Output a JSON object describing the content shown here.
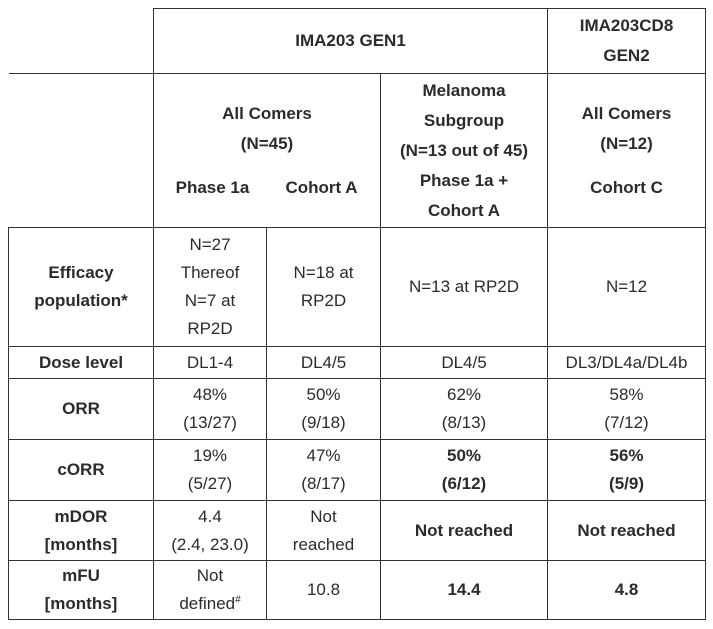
{
  "header": {
    "gen1": "IMA203 GEN1",
    "gen2_line1": "IMA203CD8",
    "gen2_line2": "GEN2"
  },
  "groups": {
    "all_comers_45_line1": "All Comers",
    "all_comers_45_line2": "(N=45)",
    "phase1a": "Phase 1a",
    "cohort_a": "Cohort A",
    "melanoma_line1": "Melanoma",
    "melanoma_line2": "Subgroup",
    "melanoma_line3": "(N=13 out of 45)",
    "melanoma_line4": "Phase 1a +",
    "melanoma_line5": "Cohort A",
    "all_comers_12_line1": "All Comers",
    "all_comers_12_line2": "(N=12)",
    "cohort_c": "Cohort C"
  },
  "rows": {
    "efficacy": {
      "label_line1": "Efficacy",
      "label_line2": "population*",
      "c1_l1": "N=27",
      "c1_l2": "Thereof",
      "c1_l3": "N=7 at",
      "c1_l4": "RP2D",
      "c2_l1": "N=18 at",
      "c2_l2": "RP2D",
      "c3": "N=13 at RP2D",
      "c4": "N=12"
    },
    "dose": {
      "label": "Dose level",
      "c1": "DL1-4",
      "c2": "DL4/5",
      "c3": "DL4/5",
      "c4": "DL3/DL4a/DL4b"
    },
    "orr": {
      "label": "ORR",
      "c1_l1": "48%",
      "c1_l2": "(13/27)",
      "c2_l1": "50%",
      "c2_l2": "(9/18)",
      "c3_l1": "62%",
      "c3_l2": "(8/13)",
      "c4_l1": "58%",
      "c4_l2": "(7/12)"
    },
    "corr": {
      "label": "cORR",
      "c1_l1": "19%",
      "c1_l2": "(5/27)",
      "c2_l1": "47%",
      "c2_l2": "(8/17)",
      "c3_l1": "50%",
      "c3_l2": "(6/12)",
      "c4_l1": "56%",
      "c4_l2": "(5/9)"
    },
    "mdor": {
      "label_line1": "mDOR",
      "label_line2": "[months]",
      "c1_l1": "4.4",
      "c1_l2": "(2.4, 23.0)",
      "c2_l1": "Not",
      "c2_l2": "reached",
      "c3": "Not reached",
      "c4": "Not reached"
    },
    "mfu": {
      "label_line1": "mFU",
      "label_line2": "[months]",
      "c1_l1": "Not",
      "c1_l2": "defined",
      "c1_sup": "#",
      "c2": "10.8",
      "c3": "14.4",
      "c4": "4.8"
    }
  }
}
